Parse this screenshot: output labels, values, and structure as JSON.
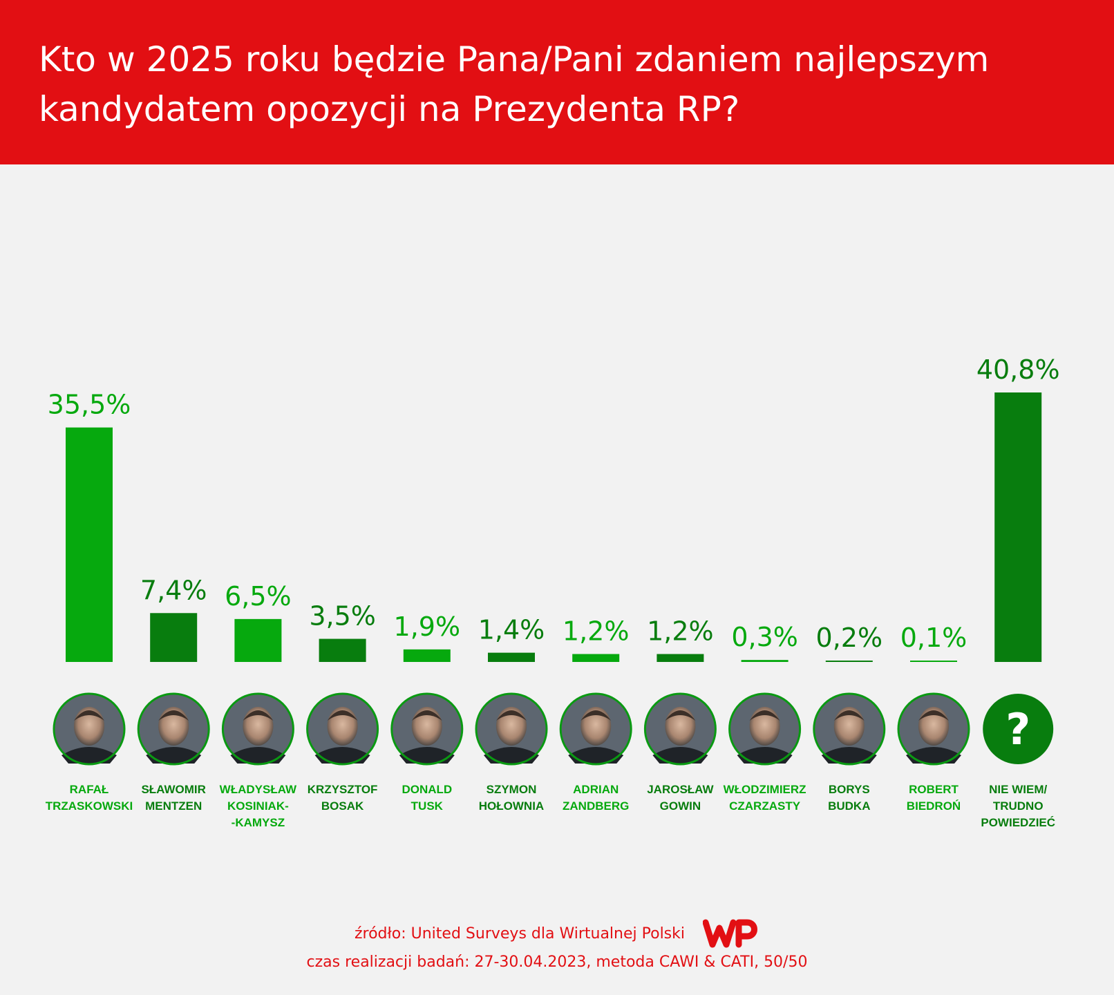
{
  "title": "Kto w 2025 roku będzie Pana/Pani zdaniem najlepszym kandydatem opozycji na Prezydenta RP?",
  "footer": {
    "source": "źródło: United Surveys dla Wirtualnej Polski",
    "method": "czas realizacji badań: 27-30.04.2023, metoda CAWI & CATI, 50/50"
  },
  "colors": {
    "header_red": "#e20f13",
    "bright_green": "#06a90e",
    "dark_green": "#087d0e",
    "background": "#f2f2f2"
  },
  "chart_data": {
    "type": "bar",
    "title": "Kto w 2025 roku będzie Pana/Pani zdaniem najlepszym kandydatem opozycji na Prezydenta RP?",
    "categories": [
      "RAFAŁ TRZASKOWSKI",
      "SŁAWOMIR MENTZEN",
      "WŁADYSŁAW KOSINIAK--KAMYSZ",
      "KRZYSZTOF BOSAK",
      "DONALD TUSK",
      "SZYMON HOŁOWNIA",
      "ADRIAN ZANDBERG",
      "JAROSŁAW GOWIN",
      "WŁODZIMIERZ CZARZASTY",
      "BORYS BUDKA",
      "ROBERT BIEDROŃ",
      "NIE WIEM/ TRUDNO POWIEDZIEĆ"
    ],
    "label_lines": [
      [
        "RAFAŁ",
        "TRZASKOWSKI"
      ],
      [
        "SŁAWOMIR",
        "MENTZEN"
      ],
      [
        "WŁADYSŁAW",
        "KOSINIAK-",
        "-KAMYSZ"
      ],
      [
        "KRZYSZTOF",
        "BOSAK"
      ],
      [
        "DONALD",
        "TUSK"
      ],
      [
        "SZYMON",
        "HOŁOWNIA"
      ],
      [
        "ADRIAN",
        "ZANDBERG"
      ],
      [
        "JAROSŁAW",
        "GOWIN"
      ],
      [
        "WŁODZIMIERZ",
        "CZARZASTY"
      ],
      [
        "BORYS",
        "BUDKA"
      ],
      [
        "ROBERT",
        "BIEDROŃ"
      ],
      [
        "NIE WIEM/",
        "TRUDNO",
        "POWIEDZIEĆ"
      ]
    ],
    "values": [
      35.5,
      7.4,
      6.5,
      3.5,
      1.9,
      1.4,
      1.2,
      1.2,
      0.3,
      0.2,
      0.1,
      40.8
    ],
    "value_labels": [
      "35,5%",
      "7,4%",
      "6,5%",
      "3,5%",
      "1,9%",
      "1,4%",
      "1,2%",
      "1,2%",
      "0,3%",
      "0,2%",
      "0,1%",
      "40,8%"
    ],
    "bar_colors": [
      "#06a90e",
      "#087d0e",
      "#06a90e",
      "#087d0e",
      "#06a90e",
      "#087d0e",
      "#06a90e",
      "#087d0e",
      "#06a90e",
      "#087d0e",
      "#06a90e",
      "#087d0e"
    ],
    "unknown_marker": "?",
    "ylim": [
      0,
      40.8
    ],
    "grid": false,
    "legend": "none"
  }
}
